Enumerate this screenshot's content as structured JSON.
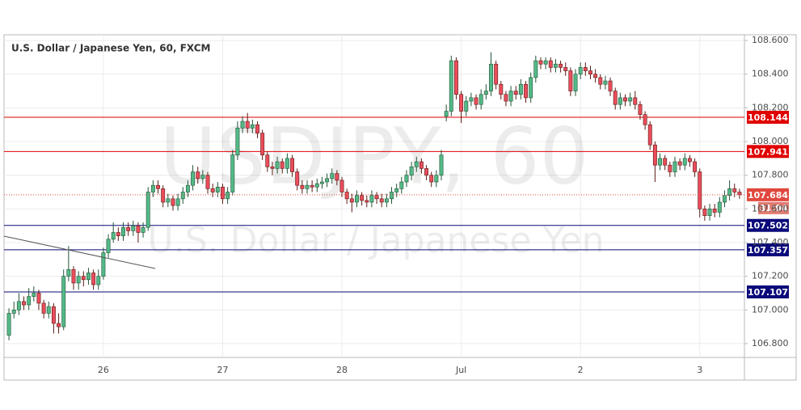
{
  "chart_data": {
    "type": "candlestick",
    "title": "U.S. Dollar / Japanese Yen, 60, FXCM",
    "watermark": {
      "symbol": "USDJPY, 60",
      "description": "U.S. Dollar / Japanese Yen"
    },
    "categories": [
      null,
      null,
      null,
      null,
      null,
      null,
      null,
      null,
      null,
      null,
      null,
      null,
      null,
      null,
      null,
      null,
      null,
      null,
      null,
      "26",
      null,
      null,
      null,
      null,
      null,
      null,
      null,
      null,
      null,
      null,
      null,
      null,
      null,
      null,
      null,
      null,
      null,
      null,
      null,
      null,
      null,
      null,
      null,
      "27",
      null,
      null,
      null,
      null,
      null,
      null,
      null,
      null,
      null,
      null,
      null,
      null,
      null,
      null,
      null,
      null,
      null,
      null,
      null,
      null,
      null,
      null,
      null,
      "28",
      null,
      null,
      null,
      null,
      null,
      null,
      null,
      null,
      null,
      null,
      null,
      null,
      null,
      null,
      null,
      null,
      null,
      null,
      null,
      null,
      null,
      null,
      null,
      "Jul",
      null,
      null,
      null,
      null,
      null,
      null,
      null,
      null,
      null,
      null,
      null,
      null,
      null,
      null,
      null,
      null,
      null,
      null,
      null,
      null,
      null,
      null,
      null,
      "2",
      null,
      null,
      null,
      null,
      null,
      null,
      null,
      null,
      null,
      null,
      null,
      null,
      null,
      null,
      null,
      null,
      null,
      null,
      null,
      null,
      null,
      null,
      null,
      "3",
      null,
      null,
      null,
      null,
      null,
      null,
      null,
      null
    ],
    "open": [
      106.85,
      106.98,
      107.0,
      107.05,
      107.03,
      107.08,
      107.1,
      107.04,
      106.98,
      107.02,
      106.92,
      106.9,
      107.2,
      107.24,
      107.16,
      107.2,
      107.18,
      107.22,
      107.15,
      107.2,
      107.34,
      107.42,
      107.46,
      107.44,
      107.49,
      107.47,
      107.5,
      107.46,
      107.49,
      107.7,
      107.74,
      107.72,
      107.64,
      107.66,
      107.62,
      107.66,
      107.7,
      107.74,
      107.82,
      107.78,
      107.8,
      107.72,
      107.7,
      107.73,
      107.66,
      107.7,
      107.92,
      108.08,
      108.12,
      108.08,
      108.1,
      108.05,
      107.92,
      107.85,
      107.84,
      107.88,
      107.84,
      107.9,
      107.82,
      107.74,
      107.72,
      107.74,
      107.73,
      107.75,
      107.76,
      107.78,
      107.81,
      107.77,
      107.7,
      107.66,
      107.64,
      107.68,
      107.65,
      107.64,
      107.68,
      107.66,
      107.64,
      107.66,
      107.7,
      107.72,
      107.76,
      107.8,
      107.85,
      107.88,
      107.84,
      107.8,
      107.76,
      107.8,
      108.15,
      108.18,
      108.48,
      108.28,
      108.18,
      108.24,
      108.26,
      108.22,
      108.28,
      108.3,
      108.46,
      108.34,
      108.28,
      108.24,
      108.3,
      108.28,
      108.34,
      108.26,
      108.38,
      108.48,
      108.46,
      108.48,
      108.44,
      108.46,
      108.44,
      108.42,
      108.3,
      108.4,
      108.44,
      108.42,
      108.4,
      108.38,
      108.34,
      108.36,
      108.3,
      108.22,
      108.26,
      108.24,
      108.26,
      108.22,
      108.16,
      108.1,
      107.98,
      107.86,
      107.9,
      107.86,
      107.82,
      107.88,
      107.86,
      107.9,
      107.88,
      107.82,
      107.6,
      107.56,
      107.6,
      107.58,
      107.64,
      107.68,
      107.72,
      107.7
    ],
    "high": [
      107.01,
      107.05,
      107.1,
      107.08,
      107.13,
      107.14,
      107.12,
      107.06,
      107.05,
      107.04,
      106.98,
      107.24,
      107.38,
      107.26,
      107.23,
      107.23,
      107.25,
      107.24,
      107.24,
      107.37,
      107.45,
      107.52,
      107.49,
      107.52,
      107.52,
      107.53,
      107.52,
      107.52,
      107.73,
      107.77,
      107.77,
      107.74,
      107.69,
      107.68,
      107.69,
      107.73,
      107.77,
      107.86,
      107.85,
      107.83,
      107.82,
      107.75,
      107.76,
      107.75,
      107.73,
      107.95,
      108.12,
      108.15,
      108.17,
      108.13,
      108.12,
      108.07,
      107.94,
      107.88,
      107.91,
      107.9,
      107.93,
      107.92,
      107.84,
      107.77,
      107.77,
      107.77,
      107.78,
      107.79,
      107.81,
      107.84,
      107.83,
      107.79,
      107.72,
      107.69,
      107.71,
      107.7,
      107.68,
      107.71,
      107.7,
      107.69,
      107.69,
      107.73,
      107.75,
      107.79,
      107.83,
      107.88,
      107.91,
      107.9,
      107.86,
      107.82,
      107.83,
      107.95,
      108.22,
      108.51,
      108.5,
      108.3,
      108.27,
      108.29,
      108.28,
      108.31,
      108.34,
      108.53,
      108.48,
      108.36,
      108.3,
      108.33,
      108.33,
      108.37,
      108.36,
      108.41,
      108.51,
      108.5,
      108.5,
      108.5,
      108.49,
      108.48,
      108.47,
      108.44,
      108.43,
      108.47,
      108.47,
      108.45,
      108.43,
      108.4,
      108.39,
      108.38,
      108.32,
      108.29,
      108.28,
      108.29,
      108.3,
      108.24,
      108.18,
      108.12,
      108.0,
      107.93,
      107.92,
      107.88,
      107.91,
      107.9,
      107.93,
      107.92,
      107.9,
      107.84,
      107.62,
      107.63,
      107.63,
      107.67,
      107.71,
      107.77,
      107.75,
      107.72
    ],
    "low": [
      106.82,
      106.95,
      106.97,
      107.0,
      107.0,
      107.05,
      107.0,
      106.95,
      106.95,
      106.86,
      106.86,
      106.88,
      107.17,
      107.12,
      107.12,
      107.14,
      107.15,
      107.12,
      107.12,
      107.18,
      107.31,
      107.4,
      107.41,
      107.41,
      107.44,
      107.44,
      107.4,
      107.43,
      107.47,
      107.67,
      107.69,
      107.61,
      107.61,
      107.59,
      107.59,
      107.63,
      107.67,
      107.71,
      107.75,
      107.75,
      107.69,
      107.67,
      107.67,
      107.63,
      107.63,
      107.68,
      107.89,
      108.05,
      108.05,
      108.05,
      108.02,
      107.89,
      107.82,
      107.8,
      107.81,
      107.81,
      107.81,
      107.79,
      107.71,
      107.69,
      107.69,
      107.7,
      107.7,
      107.72,
      107.73,
      107.75,
      107.74,
      107.67,
      107.63,
      107.58,
      107.61,
      107.62,
      107.61,
      107.61,
      107.63,
      107.61,
      107.61,
      107.63,
      107.67,
      107.69,
      107.73,
      107.77,
      107.82,
      107.81,
      107.77,
      107.73,
      107.73,
      107.77,
      108.12,
      108.15,
      108.25,
      108.11,
      108.15,
      108.21,
      108.19,
      108.19,
      108.25,
      108.27,
      108.31,
      108.25,
      108.21,
      108.21,
      108.25,
      108.25,
      108.23,
      108.23,
      108.35,
      108.43,
      108.43,
      108.41,
      108.41,
      108.41,
      108.39,
      108.27,
      108.27,
      108.37,
      108.39,
      108.37,
      108.35,
      108.31,
      108.31,
      108.27,
      108.19,
      108.19,
      108.21,
      108.21,
      108.19,
      108.13,
      108.07,
      107.95,
      107.76,
      107.83,
      107.83,
      107.79,
      107.79,
      107.83,
      107.83,
      107.85,
      107.79,
      107.55,
      107.53,
      107.53,
      107.55,
      107.55,
      107.61,
      107.65,
      107.67,
      107.66
    ],
    "close": [
      106.98,
      107.0,
      107.05,
      107.03,
      107.08,
      107.1,
      107.04,
      106.98,
      107.02,
      106.92,
      106.9,
      107.2,
      107.24,
      107.16,
      107.2,
      107.18,
      107.22,
      107.15,
      107.2,
      107.34,
      107.42,
      107.46,
      107.44,
      107.49,
      107.47,
      107.5,
      107.46,
      107.49,
      107.7,
      107.74,
      107.72,
      107.64,
      107.66,
      107.62,
      107.66,
      107.7,
      107.74,
      107.82,
      107.78,
      107.8,
      107.72,
      107.7,
      107.73,
      107.66,
      107.7,
      107.92,
      108.08,
      108.12,
      108.08,
      108.1,
      108.05,
      107.92,
      107.85,
      107.84,
      107.88,
      107.84,
      107.9,
      107.82,
      107.74,
      107.72,
      107.74,
      107.73,
      107.75,
      107.76,
      107.78,
      107.81,
      107.77,
      107.7,
      107.66,
      107.64,
      107.68,
      107.65,
      107.64,
      107.68,
      107.66,
      107.64,
      107.66,
      107.7,
      107.72,
      107.76,
      107.8,
      107.85,
      107.88,
      107.84,
      107.8,
      107.76,
      107.8,
      107.92,
      108.18,
      108.48,
      108.28,
      108.18,
      108.24,
      108.26,
      108.22,
      108.28,
      108.3,
      108.46,
      108.34,
      108.28,
      108.24,
      108.3,
      108.28,
      108.34,
      108.26,
      108.38,
      108.48,
      108.46,
      108.48,
      108.44,
      108.46,
      108.44,
      108.42,
      108.3,
      108.4,
      108.44,
      108.42,
      108.4,
      108.38,
      108.34,
      108.36,
      108.3,
      108.22,
      108.26,
      108.24,
      108.26,
      108.22,
      108.16,
      108.1,
      107.98,
      107.86,
      107.9,
      107.86,
      107.82,
      107.88,
      107.86,
      107.9,
      107.88,
      107.82,
      107.6,
      107.56,
      107.6,
      107.58,
      107.64,
      107.68,
      107.72,
      107.7,
      107.684
    ],
    "up_color": "#53b987",
    "up_border": "#225437",
    "down_color": "#eb4d5c",
    "down_border": "#5b1a13",
    "ylim": [
      106.718,
      108.634
    ],
    "yticks": [
      {
        "value": 106.8,
        "label": "106.800"
      },
      {
        "value": 107.0,
        "label": "107.000"
      },
      {
        "value": 107.2,
        "label": "107.200"
      },
      {
        "value": 107.4,
        "label": "107.400"
      },
      {
        "value": 107.6,
        "label": "107.600"
      },
      {
        "value": 107.8,
        "label": "107.800"
      },
      {
        "value": 108.0,
        "label": "108.000"
      },
      {
        "value": 108.2,
        "label": "108.200"
      },
      {
        "value": 108.4,
        "label": "108.400"
      },
      {
        "value": 108.6,
        "label": "108.600"
      }
    ],
    "grid": true,
    "levels": [
      {
        "value": 108.144,
        "color": "#e00000"
      },
      {
        "value": 107.941,
        "color": "#e00000"
      },
      {
        "value": 107.502,
        "color": "#0a0a7a"
      },
      {
        "value": 107.357,
        "color": "#0a0a7a"
      },
      {
        "value": 107.107,
        "color": "#0a0a7a"
      }
    ],
    "last_price": {
      "value": 107.684,
      "color": "#e0483e",
      "countdown": "31:04"
    }
  }
}
